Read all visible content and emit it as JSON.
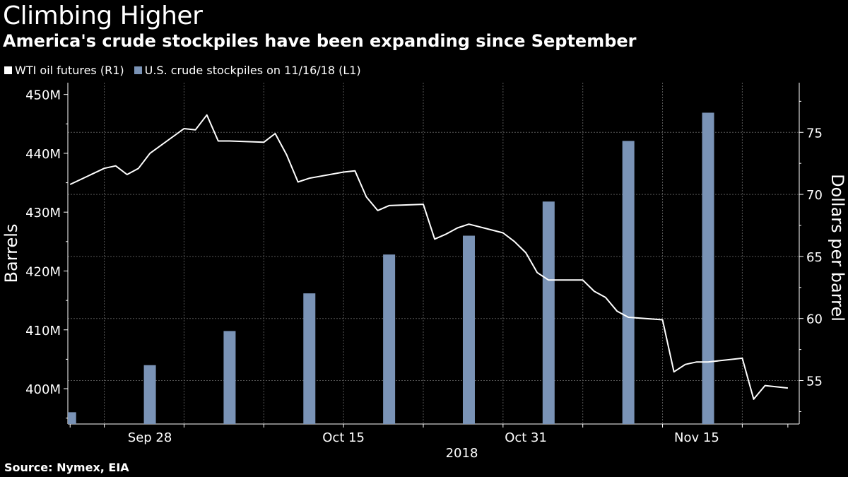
{
  "header": {
    "title": "Climbing Higher",
    "subtitle": "America's crude stockpiles have been expanding since September"
  },
  "legend": [
    {
      "label": "WTI oil futures (R1)",
      "color": "#ffffff"
    },
    {
      "label": "U.S. crude stockpiles on 11/16/18 (L1)",
      "color": "#7a93b6"
    }
  ],
  "source": "Source: Nymex, EIA",
  "chart_data": {
    "type": "bar+line",
    "title": "Climbing Higher",
    "subtitle": "America's crude stockpiles have been expanding since September",
    "x_tick_labels": [
      "Sep 28",
      "Oct 15",
      "Oct 31",
      "Nov 15"
    ],
    "x_axis_year": "2018",
    "left_axis": {
      "label": "Barrels",
      "ticks": [
        "400M",
        "410M",
        "420M",
        "430M",
        "440M",
        "450M"
      ],
      "ylim": [
        394000000,
        452000000
      ]
    },
    "right_axis": {
      "label": "Dollars per barrel",
      "ticks": [
        "55",
        "60",
        "65",
        "70",
        "75"
      ],
      "ylim": [
        51.5,
        79
      ]
    },
    "bars": {
      "name": "U.S. crude stockpiles on 11/16/18 (L1)",
      "color": "#7a93b6",
      "dates": [
        "2018-09-21",
        "2018-09-28",
        "2018-10-05",
        "2018-10-12",
        "2018-10-19",
        "2018-10-26",
        "2018-11-02",
        "2018-11-09",
        "2018-11-16"
      ],
      "values": [
        396000000,
        404000000,
        409800000,
        416200000,
        422800000,
        426000000,
        431800000,
        442100000,
        446900000
      ]
    },
    "line": {
      "name": "WTI oil futures (R1)",
      "color": "#ffffff",
      "dates": [
        "2018-09-21",
        "2018-09-24",
        "2018-09-25",
        "2018-09-26",
        "2018-09-27",
        "2018-09-28",
        "2018-10-01",
        "2018-10-02",
        "2018-10-03",
        "2018-10-04",
        "2018-10-05",
        "2018-10-08",
        "2018-10-09",
        "2018-10-10",
        "2018-10-11",
        "2018-10-12",
        "2018-10-15",
        "2018-10-16",
        "2018-10-17",
        "2018-10-18",
        "2018-10-19",
        "2018-10-22",
        "2018-10-23",
        "2018-10-24",
        "2018-10-25",
        "2018-10-26",
        "2018-10-29",
        "2018-10-30",
        "2018-10-31",
        "2018-11-01",
        "2018-11-02",
        "2018-11-05",
        "2018-11-06",
        "2018-11-07",
        "2018-11-08",
        "2018-11-09",
        "2018-11-12",
        "2018-11-13",
        "2018-11-14",
        "2018-11-15",
        "2018-11-16",
        "2018-11-19",
        "2018-11-20",
        "2018-11-21",
        "2018-11-23"
      ],
      "values": [
        70.8,
        72.1,
        72.3,
        71.6,
        72.1,
        73.3,
        75.3,
        75.2,
        76.4,
        74.3,
        74.3,
        74.2,
        74.9,
        73.2,
        71.0,
        71.3,
        71.8,
        71.9,
        69.8,
        68.7,
        69.1,
        69.2,
        66.4,
        66.8,
        67.3,
        67.6,
        66.9,
        66.2,
        65.3,
        63.7,
        63.1,
        63.1,
        62.2,
        61.7,
        60.6,
        60.1,
        59.9,
        55.7,
        56.3,
        56.5,
        56.5,
        56.8,
        53.5,
        54.6,
        54.4
      ]
    },
    "grid": true
  }
}
